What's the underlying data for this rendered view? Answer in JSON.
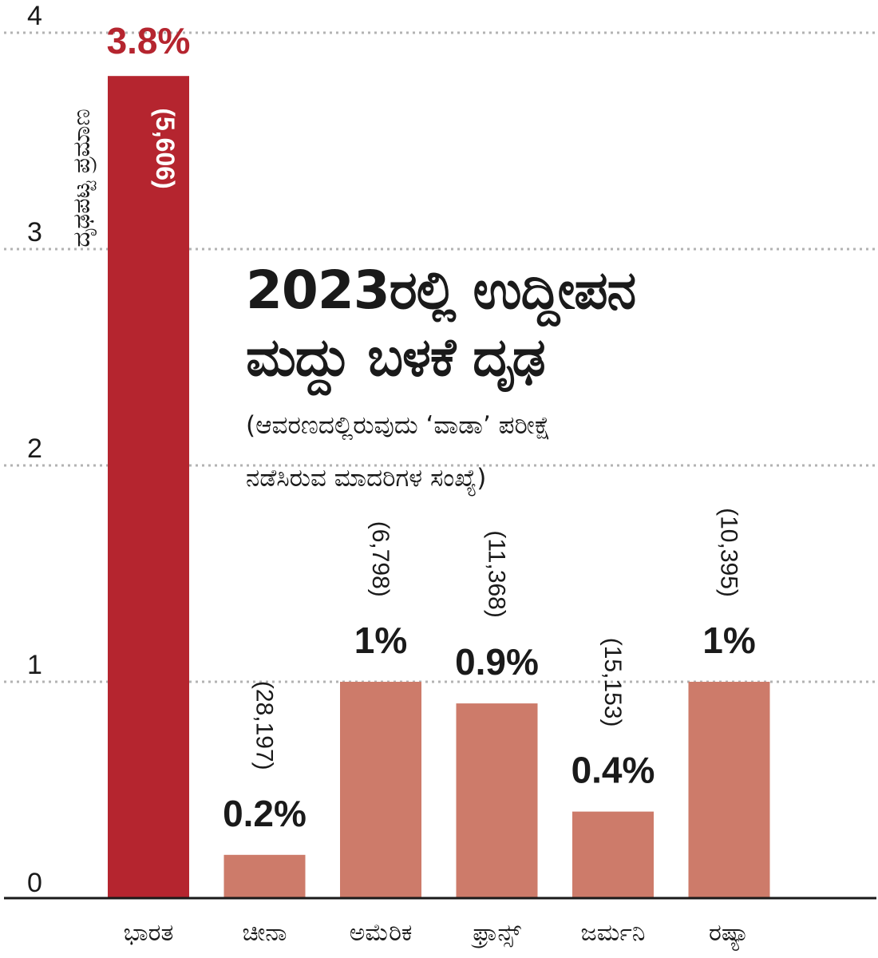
{
  "chart_data": {
    "type": "bar",
    "title": [
      "2023ರಲ್ಲಿ ಉದ್ದೀಪನ",
      "ಮದ್ದು ಬಳಕೆ ದೃಢ"
    ],
    "subtitle": [
      "(ಆವರಣದಲ್ಲಿರುವುದು ‘ವಾಡಾ’ ಪರೀಕ್ಷೆ",
      "ನಡೆಸಿರುವ ಮಾದರಿಗಳ ಸಂಖ್ಯೆ)"
    ],
    "ylabel": "ದೃಢಪಟ್ಟ ಪ್ರಮಾಣ",
    "ylim": [
      0,
      4
    ],
    "yticks": [
      "0",
      "1",
      "2",
      "3",
      "4"
    ],
    "grid": true,
    "categories": [
      "ಭಾರತ",
      "ಚೀನಾ",
      "ಅಮೆರಿಕ",
      "ಫ್ರಾನ್ಸ್",
      "ಜರ್ಮನಿ",
      "ರಷ್ಯಾ"
    ],
    "values": [
      3.8,
      0.2,
      1,
      0.9,
      0.4,
      1
    ],
    "value_labels": [
      "3.8%",
      "0.2%",
      "1%",
      "0.9%",
      "0.4%",
      "1%"
    ],
    "sample_labels": [
      "(5,606)",
      "(28,197)",
      "(6,798)",
      "(11,368)",
      "(15,153)",
      "(10,395)"
    ],
    "colors": {
      "highlight": "#b5252f",
      "bar": "#cd7b6a",
      "text": "#1a1a1a",
      "grid": "#b3b3b3"
    }
  }
}
